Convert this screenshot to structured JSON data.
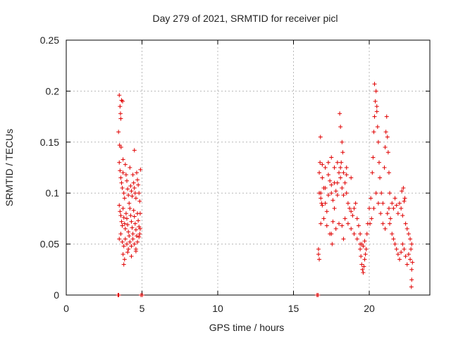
{
  "chart_data": {
    "type": "scatter",
    "title": "Day 279 of 2021, SRMTID for receiver picl",
    "xlabel": "GPS time / hours",
    "ylabel": "SRMTID / TECUs",
    "xlim": [
      0,
      24
    ],
    "ylim": [
      0,
      0.25
    ],
    "xticks": [
      0,
      5,
      10,
      15,
      20
    ],
    "xtick_labels": [
      "0",
      "5",
      "10",
      "15",
      "20"
    ],
    "yticks": [
      0,
      0.05,
      0.1,
      0.15,
      0.2,
      0.25
    ],
    "ytick_labels": [
      "0",
      "0.05",
      "0.1",
      "0.15",
      "0.2",
      "0.25"
    ],
    "grid": true,
    "marker": "+",
    "series": [
      {
        "name": "SRMTID",
        "color": "#e00000",
        "points": [
          [
            3.42,
            0.0
          ],
          [
            3.47,
            0.0
          ],
          [
            4.93,
            0.0
          ],
          [
            5.02,
            0.0
          ],
          [
            16.55,
            0.0
          ],
          [
            16.62,
            0.0
          ],
          [
            3.5,
            0.196
          ],
          [
            3.55,
            0.185
          ],
          [
            3.65,
            0.191
          ],
          [
            3.6,
            0.173
          ],
          [
            3.72,
            0.19
          ],
          [
            3.45,
            0.16
          ],
          [
            3.58,
            0.178
          ],
          [
            3.52,
            0.147
          ],
          [
            3.62,
            0.145
          ],
          [
            4.5,
            0.142
          ],
          [
            3.75,
            0.133
          ],
          [
            3.5,
            0.13
          ],
          [
            3.55,
            0.122
          ],
          [
            3.6,
            0.115
          ],
          [
            3.65,
            0.11
          ],
          [
            3.7,
            0.105
          ],
          [
            3.75,
            0.12
          ],
          [
            3.8,
            0.1
          ],
          [
            3.85,
            0.095
          ],
          [
            3.9,
            0.128
          ],
          [
            3.95,
            0.118
          ],
          [
            4.0,
            0.112
          ],
          [
            4.05,
            0.104
          ],
          [
            4.1,
            0.098
          ],
          [
            4.15,
            0.09
          ],
          [
            4.2,
            0.125
          ],
          [
            4.25,
            0.107
          ],
          [
            4.3,
            0.102
          ],
          [
            4.35,
            0.097
          ],
          [
            4.4,
            0.118
          ],
          [
            4.45,
            0.11
          ],
          [
            4.5,
            0.105
          ],
          [
            4.55,
            0.1
          ],
          [
            4.6,
            0.095
          ],
          [
            4.65,
            0.12
          ],
          [
            4.7,
            0.113
          ],
          [
            4.75,
            0.108
          ],
          [
            4.8,
            0.1
          ],
          [
            4.85,
            0.092
          ],
          [
            3.5,
            0.088
          ],
          [
            3.55,
            0.082
          ],
          [
            3.6,
            0.078
          ],
          [
            3.65,
            0.072
          ],
          [
            3.7,
            0.068
          ],
          [
            3.75,
            0.085
          ],
          [
            3.8,
            0.076
          ],
          [
            3.85,
            0.07
          ],
          [
            3.9,
            0.065
          ],
          [
            3.95,
            0.08
          ],
          [
            4.0,
            0.075
          ],
          [
            4.05,
            0.069
          ],
          [
            4.1,
            0.062
          ],
          [
            4.15,
            0.058
          ],
          [
            4.2,
            0.085
          ],
          [
            4.25,
            0.078
          ],
          [
            4.3,
            0.072
          ],
          [
            4.35,
            0.066
          ],
          [
            4.4,
            0.06
          ],
          [
            4.45,
            0.083
          ],
          [
            4.5,
            0.077
          ],
          [
            4.55,
            0.07
          ],
          [
            4.6,
            0.064
          ],
          [
            4.65,
            0.058
          ],
          [
            4.7,
            0.08
          ],
          [
            4.75,
            0.073
          ],
          [
            4.8,
            0.067
          ],
          [
            4.85,
            0.06
          ],
          [
            3.5,
            0.055
          ],
          [
            3.6,
            0.06
          ],
          [
            3.7,
            0.052
          ],
          [
            3.8,
            0.048
          ],
          [
            3.9,
            0.055
          ],
          [
            4.0,
            0.05
          ],
          [
            4.1,
            0.045
          ],
          [
            4.2,
            0.052
          ],
          [
            4.3,
            0.048
          ],
          [
            4.4,
            0.055
          ],
          [
            4.5,
            0.05
          ],
          [
            4.6,
            0.045
          ],
          [
            4.7,
            0.052
          ],
          [
            4.8,
            0.057
          ],
          [
            3.75,
            0.04
          ],
          [
            3.85,
            0.035
          ],
          [
            3.8,
            0.03
          ],
          [
            4.05,
            0.042
          ],
          [
            4.3,
            0.038
          ],
          [
            4.6,
            0.043
          ],
          [
            4.88,
            0.065
          ],
          [
            4.9,
            0.123
          ],
          [
            4.88,
            0.08
          ],
          [
            16.65,
            0.04
          ],
          [
            16.7,
            0.035
          ],
          [
            16.65,
            0.045
          ],
          [
            16.75,
            0.13
          ],
          [
            16.78,
            0.155
          ],
          [
            16.8,
            0.1
          ],
          [
            16.85,
            0.09
          ],
          [
            16.7,
            0.1
          ],
          [
            16.8,
            0.095
          ],
          [
            16.9,
            0.088
          ],
          [
            17.0,
            0.105
          ],
          [
            17.1,
            0.09
          ],
          [
            17.2,
            0.082
          ],
          [
            17.3,
            0.098
          ],
          [
            17.4,
            0.112
          ],
          [
            17.5,
            0.1
          ],
          [
            17.6,
            0.093
          ],
          [
            17.7,
            0.085
          ],
          [
            17.8,
            0.102
          ],
          [
            17.9,
            0.11
          ],
          [
            18.0,
            0.12
          ],
          [
            18.1,
            0.115
          ],
          [
            18.2,
            0.105
          ],
          [
            18.3,
            0.098
          ],
          [
            18.4,
            0.11
          ],
          [
            18.5,
            0.1
          ],
          [
            18.6,
            0.09
          ],
          [
            18.7,
            0.085
          ],
          [
            18.8,
            0.082
          ],
          [
            18.9,
            0.078
          ],
          [
            19.0,
            0.085
          ],
          [
            19.1,
            0.09
          ],
          [
            19.2,
            0.075
          ],
          [
            19.3,
            0.068
          ],
          [
            19.4,
            0.06
          ],
          [
            16.7,
            0.12
          ],
          [
            16.9,
            0.128
          ],
          [
            17.1,
            0.125
          ],
          [
            17.3,
            0.13
          ],
          [
            17.5,
            0.135
          ],
          [
            17.7,
            0.125
          ],
          [
            17.9,
            0.13
          ],
          [
            18.1,
            0.125
          ],
          [
            18.3,
            0.12
          ],
          [
            18.5,
            0.118
          ],
          [
            16.8,
            0.07
          ],
          [
            17.0,
            0.075
          ],
          [
            17.2,
            0.068
          ],
          [
            17.4,
            0.06
          ],
          [
            17.6,
            0.072
          ],
          [
            17.8,
            0.065
          ],
          [
            18.0,
            0.07
          ],
          [
            18.2,
            0.068
          ],
          [
            18.4,
            0.075
          ],
          [
            18.6,
            0.07
          ],
          [
            18.8,
            0.065
          ],
          [
            19.0,
            0.06
          ],
          [
            19.2,
            0.055
          ],
          [
            19.4,
            0.05
          ],
          [
            16.9,
            0.115
          ],
          [
            17.1,
            0.105
          ],
          [
            17.3,
            0.118
          ],
          [
            17.5,
            0.108
          ],
          [
            17.7,
            0.11
          ],
          [
            17.9,
            0.098
          ],
          [
            18.05,
            0.178
          ],
          [
            18.1,
            0.165
          ],
          [
            18.2,
            0.15
          ],
          [
            18.25,
            0.14
          ],
          [
            18.15,
            0.13
          ],
          [
            18.5,
            0.125
          ],
          [
            18.8,
            0.115
          ],
          [
            17.5,
            0.06
          ],
          [
            17.55,
            0.05
          ],
          [
            18.3,
            0.055
          ],
          [
            19.4,
            0.045
          ],
          [
            19.45,
            0.038
          ],
          [
            19.5,
            0.03
          ],
          [
            19.55,
            0.025
          ],
          [
            19.6,
            0.022
          ],
          [
            19.65,
            0.028
          ],
          [
            19.7,
            0.035
          ],
          [
            19.75,
            0.04
          ],
          [
            19.5,
            0.05
          ],
          [
            19.6,
            0.048
          ],
          [
            19.7,
            0.053
          ],
          [
            19.8,
            0.045
          ],
          [
            19.85,
            0.06
          ],
          [
            19.9,
            0.07
          ],
          [
            20.0,
            0.085
          ],
          [
            20.1,
            0.095
          ],
          [
            20.2,
            0.12
          ],
          [
            20.25,
            0.135
          ],
          [
            20.3,
            0.16
          ],
          [
            20.35,
            0.175
          ],
          [
            20.4,
            0.19
          ],
          [
            20.45,
            0.2
          ],
          [
            20.5,
            0.185
          ],
          [
            20.55,
            0.165
          ],
          [
            20.6,
            0.15
          ],
          [
            20.65,
            0.13
          ],
          [
            20.7,
            0.115
          ],
          [
            20.8,
            0.1
          ],
          [
            20.9,
            0.09
          ],
          [
            21.0,
            0.125
          ],
          [
            21.05,
            0.145
          ],
          [
            21.1,
            0.16
          ],
          [
            21.15,
            0.175
          ],
          [
            21.2,
            0.155
          ],
          [
            21.25,
            0.14
          ],
          [
            21.3,
            0.12
          ],
          [
            21.35,
            0.1
          ],
          [
            20.05,
            0.07
          ],
          [
            20.15,
            0.075
          ],
          [
            20.3,
            0.085
          ],
          [
            20.45,
            0.1
          ],
          [
            20.6,
            0.09
          ],
          [
            20.75,
            0.08
          ],
          [
            20.9,
            0.07
          ],
          [
            21.05,
            0.065
          ],
          [
            21.2,
            0.08
          ],
          [
            21.35,
            0.07
          ],
          [
            21.5,
            0.06
          ],
          [
            21.6,
            0.055
          ],
          [
            21.7,
            0.05
          ],
          [
            21.8,
            0.045
          ],
          [
            21.9,
            0.04
          ],
          [
            22.0,
            0.035
          ],
          [
            22.1,
            0.042
          ],
          [
            22.2,
            0.05
          ],
          [
            22.3,
            0.045
          ],
          [
            22.4,
            0.038
          ],
          [
            22.5,
            0.03
          ],
          [
            22.6,
            0.04
          ],
          [
            22.7,
            0.035
          ],
          [
            22.8,
            0.025
          ],
          [
            21.5,
            0.09
          ],
          [
            21.6,
            0.085
          ],
          [
            21.7,
            0.095
          ],
          [
            21.8,
            0.088
          ],
          [
            21.9,
            0.08
          ],
          [
            22.0,
            0.09
          ],
          [
            22.1,
            0.085
          ],
          [
            22.2,
            0.078
          ],
          [
            22.3,
            0.092
          ],
          [
            22.4,
            0.07
          ],
          [
            22.5,
            0.065
          ],
          [
            22.6,
            0.06
          ],
          [
            22.7,
            0.055
          ],
          [
            22.8,
            0.05
          ],
          [
            21.3,
            0.085
          ],
          [
            21.4,
            0.075
          ],
          [
            22.15,
            0.102
          ],
          [
            22.25,
            0.105
          ],
          [
            22.35,
            0.095
          ],
          [
            22.75,
            0.045
          ],
          [
            22.8,
            0.015
          ],
          [
            22.78,
            0.008
          ],
          [
            22.85,
            0.032
          ],
          [
            20.35,
            0.207
          ],
          [
            20.5,
            0.18
          ]
        ]
      }
    ]
  }
}
